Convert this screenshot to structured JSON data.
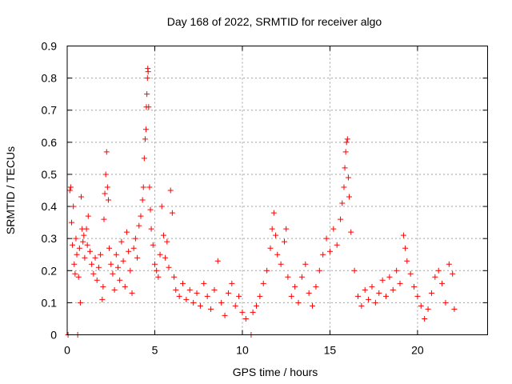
{
  "chart_data": {
    "type": "scatter",
    "title": "Day 168 of 2022, SRMTID for receiver algo",
    "xlabel": "GPS time / hours",
    "ylabel": "SRMTID / TECUs",
    "xlim": [
      0,
      24
    ],
    "ylim": [
      0,
      0.9
    ],
    "x_ticks": [
      0,
      5,
      10,
      15,
      20
    ],
    "x_tick_labels": [
      "0",
      "5",
      "10",
      "15",
      "20"
    ],
    "y_ticks": [
      0,
      0.1,
      0.2,
      0.3,
      0.4,
      0.5,
      0.6,
      0.7,
      0.8,
      0.9
    ],
    "y_tick_labels": [
      "0",
      "0.1",
      "0.2",
      "0.3",
      "0.4",
      "0.5",
      "0.6",
      "0.7",
      "0.8",
      "0.9"
    ],
    "grid": true,
    "marker": "+",
    "colors": {
      "series": "#ff0000",
      "grid": "#a0a0a0",
      "axes": "#000000"
    },
    "series": [
      {
        "name": "SRMTID",
        "points": [
          [
            0.05,
            0.0
          ],
          [
            0.15,
            0.45
          ],
          [
            0.2,
            0.46
          ],
          [
            0.25,
            0.35
          ],
          [
            0.3,
            0.28
          ],
          [
            0.35,
            0.4
          ],
          [
            0.4,
            0.22
          ],
          [
            0.45,
            0.19
          ],
          [
            0.5,
            0.3
          ],
          [
            0.55,
            0.25
          ],
          [
            0.6,
            0.0
          ],
          [
            0.65,
            0.18
          ],
          [
            0.7,
            0.27
          ],
          [
            0.75,
            0.1
          ],
          [
            0.8,
            0.43
          ],
          [
            0.85,
            0.33
          ],
          [
            0.9,
            0.29
          ],
          [
            0.95,
            0.31
          ],
          [
            1.0,
            0.24
          ],
          [
            1.1,
            0.33
          ],
          [
            1.15,
            0.28
          ],
          [
            1.2,
            0.37
          ],
          [
            1.3,
            0.26
          ],
          [
            1.4,
            0.22
          ],
          [
            1.5,
            0.19
          ],
          [
            1.6,
            0.24
          ],
          [
            1.7,
            0.17
          ],
          [
            1.8,
            0.21
          ],
          [
            1.9,
            0.25
          ],
          [
            2.0,
            0.11
          ],
          [
            2.05,
            0.15
          ],
          [
            2.1,
            0.36
          ],
          [
            2.15,
            0.44
          ],
          [
            2.2,
            0.5
          ],
          [
            2.25,
            0.57
          ],
          [
            2.3,
            0.46
          ],
          [
            2.35,
            0.42
          ],
          [
            2.4,
            0.27
          ],
          [
            2.5,
            0.22
          ],
          [
            2.6,
            0.19
          ],
          [
            2.7,
            0.14
          ],
          [
            2.8,
            0.25
          ],
          [
            2.9,
            0.21
          ],
          [
            3.0,
            0.17
          ],
          [
            3.1,
            0.29
          ],
          [
            3.2,
            0.23
          ],
          [
            3.3,
            0.15
          ],
          [
            3.4,
            0.32
          ],
          [
            3.5,
            0.26
          ],
          [
            3.6,
            0.2
          ],
          [
            3.7,
            0.13
          ],
          [
            3.8,
            0.27
          ],
          [
            3.9,
            0.3
          ],
          [
            4.0,
            0.24
          ],
          [
            4.1,
            0.34
          ],
          [
            4.2,
            0.37
          ],
          [
            4.3,
            0.42
          ],
          [
            4.35,
            0.46
          ],
          [
            4.4,
            0.55
          ],
          [
            4.45,
            0.61
          ],
          [
            4.5,
            0.64
          ],
          [
            4.52,
            0.71
          ],
          [
            4.55,
            0.75
          ],
          [
            4.58,
            0.8
          ],
          [
            4.6,
            0.83
          ],
          [
            4.62,
            0.82
          ],
          [
            4.65,
            0.71
          ],
          [
            4.7,
            0.46
          ],
          [
            4.75,
            0.39
          ],
          [
            4.8,
            0.33
          ],
          [
            4.9,
            0.28
          ],
          [
            5.0,
            0.22
          ],
          [
            5.1,
            0.2
          ],
          [
            5.2,
            0.18
          ],
          [
            5.3,
            0.25
          ],
          [
            5.4,
            0.4
          ],
          [
            5.5,
            0.31
          ],
          [
            5.6,
            0.24
          ],
          [
            5.7,
            0.29
          ],
          [
            5.8,
            0.21
          ],
          [
            5.9,
            0.45
          ],
          [
            6.0,
            0.38
          ],
          [
            6.1,
            0.18
          ],
          [
            6.2,
            0.14
          ],
          [
            6.4,
            0.12
          ],
          [
            6.6,
            0.16
          ],
          [
            6.8,
            0.11
          ],
          [
            7.0,
            0.14
          ],
          [
            7.2,
            0.1
          ],
          [
            7.4,
            0.13
          ],
          [
            7.6,
            0.09
          ],
          [
            7.8,
            0.16
          ],
          [
            8.0,
            0.12
          ],
          [
            8.2,
            0.08
          ],
          [
            8.4,
            0.14
          ],
          [
            8.6,
            0.23
          ],
          [
            8.8,
            0.1
          ],
          [
            9.0,
            0.06
          ],
          [
            9.2,
            0.13
          ],
          [
            9.4,
            0.16
          ],
          [
            9.6,
            0.09
          ],
          [
            9.8,
            0.12
          ],
          [
            10.0,
            0.07
          ],
          [
            10.2,
            0.05
          ],
          [
            10.5,
            0.0
          ],
          [
            10.6,
            0.07
          ],
          [
            10.8,
            0.09
          ],
          [
            11.0,
            0.12
          ],
          [
            11.2,
            0.16
          ],
          [
            11.4,
            0.2
          ],
          [
            11.6,
            0.27
          ],
          [
            11.7,
            0.33
          ],
          [
            11.8,
            0.38
          ],
          [
            11.9,
            0.31
          ],
          [
            12.0,
            0.25
          ],
          [
            12.2,
            0.22
          ],
          [
            12.4,
            0.29
          ],
          [
            12.5,
            0.33
          ],
          [
            12.6,
            0.18
          ],
          [
            12.8,
            0.12
          ],
          [
            13.0,
            0.15
          ],
          [
            13.2,
            0.1
          ],
          [
            13.4,
            0.18
          ],
          [
            13.6,
            0.22
          ],
          [
            13.8,
            0.13
          ],
          [
            14.0,
            0.09
          ],
          [
            14.2,
            0.15
          ],
          [
            14.4,
            0.2
          ],
          [
            14.6,
            0.25
          ],
          [
            14.8,
            0.3
          ],
          [
            15.0,
            0.26
          ],
          [
            15.2,
            0.33
          ],
          [
            15.4,
            0.28
          ],
          [
            15.6,
            0.36
          ],
          [
            15.7,
            0.41
          ],
          [
            15.8,
            0.46
          ],
          [
            15.85,
            0.52
          ],
          [
            15.9,
            0.57
          ],
          [
            15.95,
            0.6
          ],
          [
            16.0,
            0.61
          ],
          [
            16.05,
            0.49
          ],
          [
            16.1,
            0.43
          ],
          [
            16.2,
            0.32
          ],
          [
            16.4,
            0.2
          ],
          [
            16.6,
            0.12
          ],
          [
            16.8,
            0.09
          ],
          [
            17.0,
            0.14
          ],
          [
            17.2,
            0.11
          ],
          [
            17.4,
            0.15
          ],
          [
            17.6,
            0.1
          ],
          [
            17.8,
            0.13
          ],
          [
            18.0,
            0.17
          ],
          [
            18.2,
            0.12
          ],
          [
            18.4,
            0.18
          ],
          [
            18.6,
            0.14
          ],
          [
            18.8,
            0.2
          ],
          [
            19.0,
            0.16
          ],
          [
            19.2,
            0.31
          ],
          [
            19.3,
            0.27
          ],
          [
            19.4,
            0.23
          ],
          [
            19.6,
            0.19
          ],
          [
            19.8,
            0.15
          ],
          [
            20.0,
            0.12
          ],
          [
            20.2,
            0.09
          ],
          [
            20.4,
            0.05
          ],
          [
            20.6,
            0.08
          ],
          [
            20.8,
            0.13
          ],
          [
            21.0,
            0.18
          ],
          [
            21.2,
            0.2
          ],
          [
            21.4,
            0.16
          ],
          [
            21.6,
            0.1
          ],
          [
            21.8,
            0.22
          ],
          [
            22.0,
            0.19
          ],
          [
            22.1,
            0.08
          ]
        ]
      }
    ]
  }
}
